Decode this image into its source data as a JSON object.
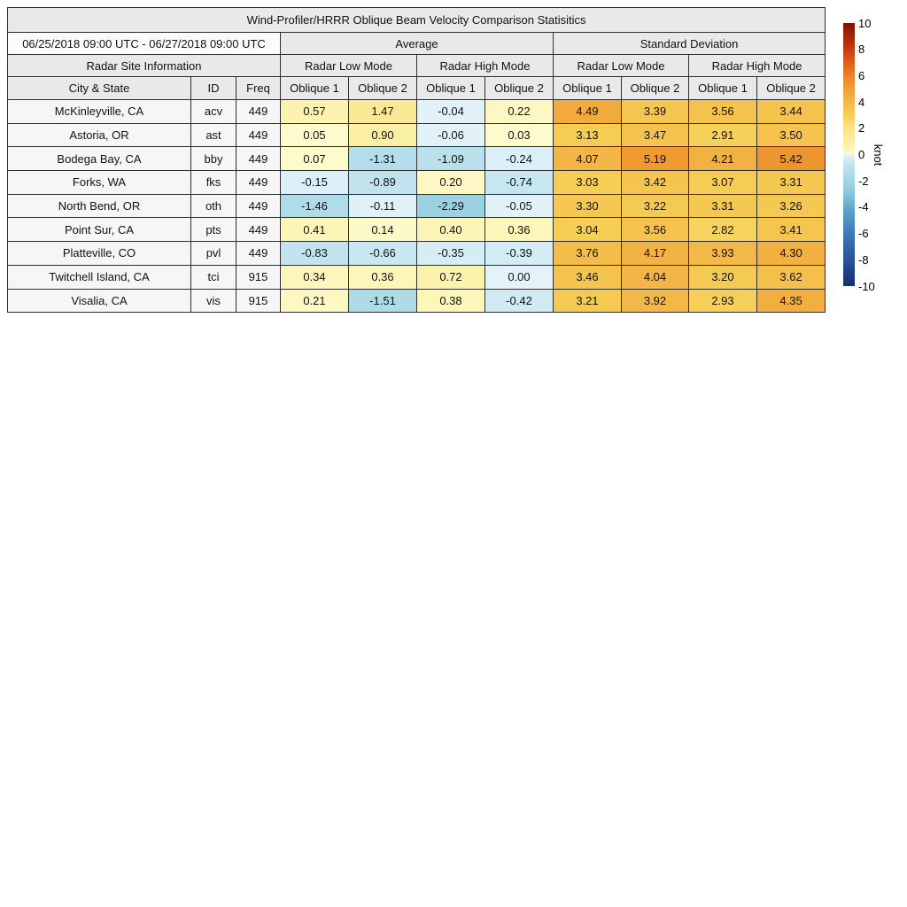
{
  "chart_data": {
    "type": "heatmap-table",
    "title": "Wind-Profiler/HRRR Oblique Beam Velocity Comparison Statisitics",
    "date_range": "06/25/2018 09:00 UTC - 06/27/2018 09:00 UTC",
    "group_headers": {
      "average": "Average",
      "std_dev": "Standard Deviation"
    },
    "mode_headers": {
      "low": "Radar Low Mode",
      "high": "Radar High Mode"
    },
    "site_info_header": "Radar Site Information",
    "columns": {
      "city": "City & State",
      "id": "ID",
      "freq": "Freq",
      "oblique1": "Oblique 1",
      "oblique2": "Oblique 2"
    },
    "value_columns_order": [
      "Avg Low Oblique 1",
      "Avg Low Oblique 2",
      "Avg High Oblique 1",
      "Avg High Oblique 2",
      "Std Low Oblique 1",
      "Std Low Oblique 2",
      "Std High Oblique 1",
      "Std High Oblique 2"
    ],
    "rows": [
      {
        "city": "McKinleyville, CA",
        "id": "acv",
        "freq": "449",
        "values": [
          "0.57",
          "1.47",
          "-0.04",
          "0.22",
          "4.49",
          "3.39",
          "3.56",
          "3.44"
        ]
      },
      {
        "city": "Astoria, OR",
        "id": "ast",
        "freq": "449",
        "values": [
          "0.05",
          "0.90",
          "-0.06",
          "0.03",
          "3.13",
          "3.47",
          "2.91",
          "3.50"
        ]
      },
      {
        "city": "Bodega Bay, CA",
        "id": "bby",
        "freq": "449",
        "values": [
          "0.07",
          "-1.31",
          "-1.09",
          "-0.24",
          "4.07",
          "5.19",
          "4.21",
          "5.42"
        ]
      },
      {
        "city": "Forks, WA",
        "id": "fks",
        "freq": "449",
        "values": [
          "-0.15",
          "-0.89",
          "0.20",
          "-0.74",
          "3.03",
          "3.42",
          "3.07",
          "3.31"
        ]
      },
      {
        "city": "North Bend, OR",
        "id": "oth",
        "freq": "449",
        "values": [
          "-1.46",
          "-0.11",
          "-2.29",
          "-0.05",
          "3.30",
          "3.22",
          "3.31",
          "3.26"
        ]
      },
      {
        "city": "Point Sur, CA",
        "id": "pts",
        "freq": "449",
        "values": [
          "0.41",
          "0.14",
          "0.40",
          "0.36",
          "3.04",
          "3.56",
          "2.82",
          "3.41"
        ]
      },
      {
        "city": "Platteville, CO",
        "id": "pvl",
        "freq": "449",
        "values": [
          "-0.83",
          "-0.66",
          "-0.35",
          "-0.39",
          "3.76",
          "4.17",
          "3.93",
          "4.30"
        ]
      },
      {
        "city": "Twitchell Island, CA",
        "id": "tci",
        "freq": "915",
        "values": [
          "0.34",
          "0.36",
          "0.72",
          "0.00",
          "3.46",
          "4.04",
          "3.20",
          "3.62"
        ]
      },
      {
        "city": "Visalia, CA",
        "id": "vis",
        "freq": "915",
        "values": [
          "0.21",
          "-1.51",
          "0.38",
          "-0.42",
          "3.21",
          "3.92",
          "2.93",
          "4.35"
        ]
      }
    ],
    "zero_as_negative_cells": [
      [
        7,
        3
      ]
    ],
    "colorbar": {
      "label": "knot",
      "vmin": -10,
      "vmax": 10,
      "ticks": [
        "10",
        "8",
        "6",
        "4",
        "2",
        "0",
        "-2",
        "-4",
        "-6",
        "-8",
        "-10"
      ],
      "stops_positive": [
        [
          0,
          "#fdfbd0"
        ],
        [
          0.5,
          "#fcf4b2"
        ],
        [
          1,
          "#faefa2"
        ],
        [
          2,
          "#f8e288"
        ],
        [
          3,
          "#f6cf55"
        ],
        [
          4,
          "#f3b747"
        ],
        [
          5,
          "#f0a033"
        ],
        [
          6,
          "#e98527"
        ],
        [
          7,
          "#dc5f1b"
        ],
        [
          8,
          "#c83c10"
        ],
        [
          9,
          "#a52508"
        ],
        [
          10,
          "#7c1405"
        ]
      ],
      "stops_negative": [
        [
          0,
          "#e4f3f9"
        ],
        [
          -0.5,
          "#cfeaf2"
        ],
        [
          -1,
          "#bce1ed"
        ],
        [
          -2,
          "#a2d6e6"
        ],
        [
          -3,
          "#88c5da"
        ],
        [
          -4,
          "#64a9cd"
        ],
        [
          -5,
          "#4c92c3"
        ],
        [
          -6,
          "#3d7ab8"
        ],
        [
          -7,
          "#3465ab"
        ],
        [
          -8,
          "#2b539d"
        ],
        [
          -9,
          "#1f3f85"
        ],
        [
          -10,
          "#14306d"
        ]
      ]
    }
  }
}
